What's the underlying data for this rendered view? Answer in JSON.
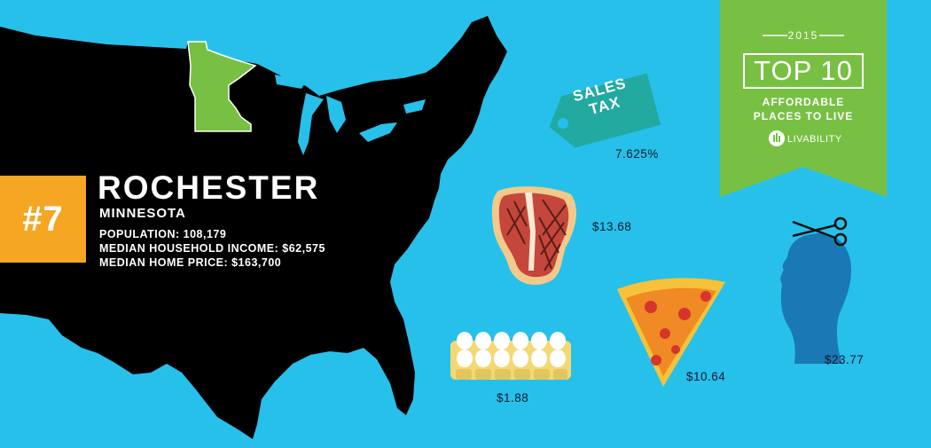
{
  "rank": {
    "label": "#7"
  },
  "city": {
    "name": "ROCHESTER",
    "state": "MINNESOTA",
    "stats": [
      "POPULATION: 108,179",
      "MEDIAN HOUSEHOLD INCOME: $62,575",
      "MEDIAN HOME PRICE: $163,700"
    ]
  },
  "banner": {
    "year": "2015",
    "title": "TOP 10",
    "subtitle_line1": "AFFORDABLE",
    "subtitle_line2": "PLACES TO LIVE",
    "brand": "LIVABILITY"
  },
  "sales_tax": {
    "tag_line1": "SALES",
    "tag_line2": "TAX",
    "value": "7.625%"
  },
  "costs": {
    "steak": "$13.68",
    "pizza": "$10.64",
    "haircut": "$23.77",
    "eggs": "$1.88"
  },
  "colors": {
    "background": "#27c0ea",
    "map": "#000000",
    "highlight_state": "#78c043",
    "rank_badge": "#f5a623",
    "banner": "#78c043",
    "tag": "#22a9a0",
    "haircut": "#1a78b4"
  },
  "icons": [
    "t-bone-steak-icon",
    "pizza-slice-icon",
    "egg-carton-icon",
    "sales-tax-tag-icon",
    "haircut-silhouette-icon",
    "scissors-icon",
    "livability-logo-icon"
  ]
}
